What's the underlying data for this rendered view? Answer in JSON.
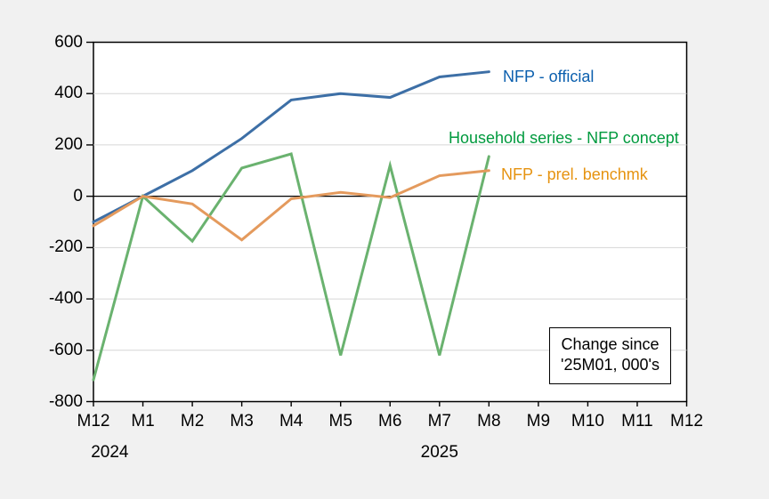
{
  "chart_data": {
    "type": "line",
    "title": "",
    "categories": [
      "M12",
      "M1",
      "M2",
      "M3",
      "M4",
      "M5",
      "M6",
      "M7",
      "M8",
      "M9",
      "M10",
      "M11",
      "M12"
    ],
    "ylim": [
      -800,
      600
    ],
    "ytick_step": 200,
    "ytick_labels": [
      "600",
      "400",
      "200",
      "0",
      "-200",
      "-400",
      "-600",
      "-800"
    ],
    "grid": true,
    "legend_position": "inline-right-of-lines",
    "year_labels": [
      {
        "text": "2024",
        "center_x_month_index": 0.33
      },
      {
        "text": "2025",
        "center_x_month_index": 7.0
      }
    ],
    "series": [
      {
        "name": "NFP - official",
        "color": "#3d6fa6",
        "label_color": "#0b5fae",
        "values": [
          -100,
          0,
          100,
          225,
          375,
          400,
          385,
          465,
          485
        ]
      },
      {
        "name": "Household series - NFP concept",
        "color": "#6ab26f",
        "label_color": "#009a3e",
        "values": [
          -715,
          0,
          -175,
          110,
          165,
          -620,
          120,
          -620,
          155
        ]
      },
      {
        "name": "NFP - prel. benchmk",
        "color": "#e49a5d",
        "label_color": "#e69310",
        "values": [
          -115,
          0,
          -30,
          -170,
          -10,
          15,
          -5,
          80,
          100
        ]
      }
    ],
    "annotation": {
      "line1": "Change since",
      "line2": "'25M01, 000's"
    },
    "colors": {
      "figure_bg": "#f1f1f1",
      "plot_bg": "#ffffff",
      "grid": "#d6d6d6",
      "axis": "#000000",
      "zero_line": "#000000"
    }
  }
}
